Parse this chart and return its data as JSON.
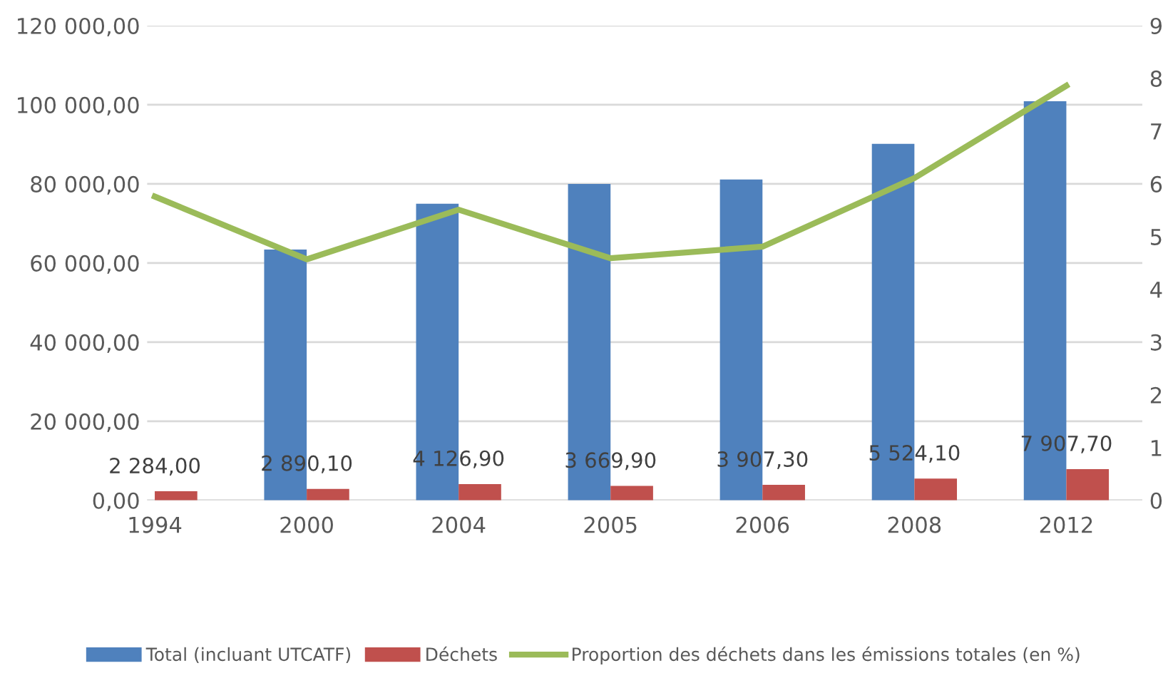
{
  "chart_data": {
    "type": "bar",
    "categories": [
      "1994",
      "2000",
      "2004",
      "2005",
      "2006",
      "2008",
      "2012"
    ],
    "series": [
      {
        "name": "Total (incluant UTCATF)",
        "color": "#4f81bd",
        "values": [
          null,
          63400,
          75000,
          80000,
          81100,
          90100,
          100900
        ]
      },
      {
        "name": "Déchets",
        "color": "#c0504d",
        "values": [
          2284.0,
          2890.1,
          4126.9,
          3669.9,
          3907.3,
          5524.1,
          7907.7
        ],
        "value_labels": [
          "2 284,00",
          "2 890,10",
          "4 126,90",
          "3 669,90",
          "3 907,30",
          "5 524,10",
          "7 907,70"
        ]
      },
      {
        "name": "Proportion des déchets dans les émissions totales (en %)",
        "type": "line",
        "axis": "y2",
        "color": "#9bbb59",
        "values": [
          5.76,
          4.57,
          5.51,
          4.59,
          4.81,
          6.11,
          7.86
        ]
      }
    ],
    "ylim": [
      0,
      120000
    ],
    "yticks": [
      {
        "value": 0,
        "label": "0,00"
      },
      {
        "value": 20000,
        "label": "20 000,00"
      },
      {
        "value": 40000,
        "label": "40 000,00"
      },
      {
        "value": 60000,
        "label": "60 000,00"
      },
      {
        "value": 80000,
        "label": "80 000,00"
      },
      {
        "value": 100000,
        "label": "100 000,00"
      },
      {
        "value": 120000,
        "label": "120 000,00"
      }
    ],
    "y2lim": [
      0,
      9
    ],
    "y2ticks": [
      0,
      1,
      2,
      3,
      4,
      5,
      6,
      7,
      8,
      9
    ],
    "grid": "y",
    "legend": "bottom",
    "marker": "none"
  }
}
